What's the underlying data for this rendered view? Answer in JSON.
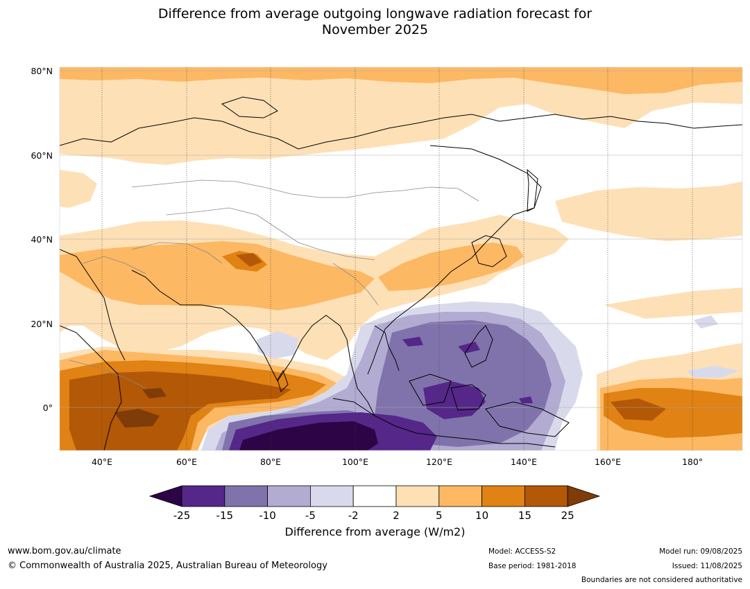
{
  "title": {
    "line1": "Difference from average outgoing longwave radiation forecast for",
    "line2": "November 2025"
  },
  "map": {
    "lat_labels": [
      "80°N",
      "60°N",
      "40°N",
      "20°N",
      "0°"
    ],
    "lon_labels": [
      "40°E",
      "60°E",
      "80°E",
      "100°E",
      "120°E",
      "140°E",
      "160°E",
      "180°"
    ],
    "extent": {
      "lon": [
        30,
        192
      ],
      "lat": [
        -10,
        81
      ]
    }
  },
  "legend": {
    "title": "Difference from average (W/m2)",
    "tick_labels": [
      "-25",
      "-15",
      "-10",
      "-5",
      "-2",
      "2",
      "5",
      "10",
      "15",
      "25"
    ],
    "colors": {
      "below_-25": "#2d0446",
      "-25_to_-15": "#542788",
      "-15_to_-10": "#8073ac",
      "-10_to_-5": "#b2abd2",
      "-5_to_-2": "#d8daeb",
      "-2_to_2": "#ffffff",
      "2_to_5": "#fee0b6",
      "5_to_10": "#fdb863",
      "10_to_15": "#e08214",
      "15_to_25": "#b35806",
      "above_25": "#7f3b08"
    }
  },
  "footer": {
    "website": "www.bom.gov.au/climate",
    "copyright": "© Commonwealth of Australia 2025, Australian Bureau of Meteorology",
    "model": "Model: ACCESS-S2",
    "base_period": "Base period: 1981-2018",
    "model_run": "Model run: 09/08/2025",
    "issued": "Issued: 11/08/2025",
    "disclaimer": "Boundaries are not considered authoritative"
  }
}
